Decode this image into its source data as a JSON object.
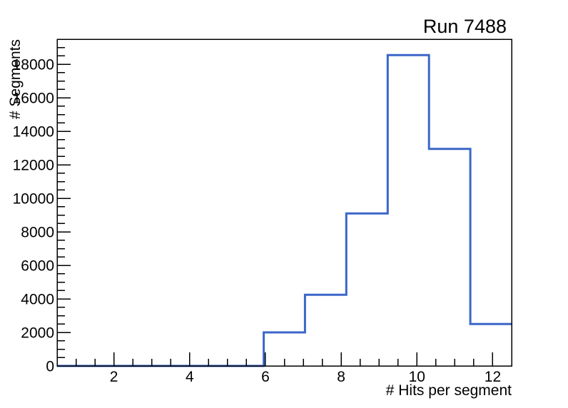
{
  "window": {
    "background_color": "#ffffff"
  },
  "chart_data": {
    "type": "histogram-step",
    "title": "Run 7488",
    "xlabel": "# Hits per segment",
    "ylabel": "# Segments",
    "xlim": [
      0.5,
      12.5
    ],
    "ylim": [
      0,
      19500
    ],
    "n_bins": 11,
    "bin_edges": [
      0.5,
      1.591,
      2.682,
      3.773,
      4.864,
      5.955,
      7.045,
      8.136,
      9.227,
      10.318,
      11.409,
      12.5
    ],
    "counts": [
      0,
      0,
      0,
      0,
      0,
      2000,
      4250,
      9100,
      18550,
      12950,
      2500
    ],
    "x_major_ticks": [
      2,
      4,
      6,
      8,
      10,
      12
    ],
    "x_minor_tick_step": 0.5,
    "y_major_ticks": [
      0,
      2000,
      4000,
      6000,
      8000,
      10000,
      12000,
      14000,
      16000,
      18000
    ],
    "y_minor_tick_step": 500,
    "grid": false,
    "legend_position": "none",
    "line_color": "#3a67c8",
    "line_width": 3,
    "axis_color": "#000000",
    "background_color": "#ffffff"
  }
}
